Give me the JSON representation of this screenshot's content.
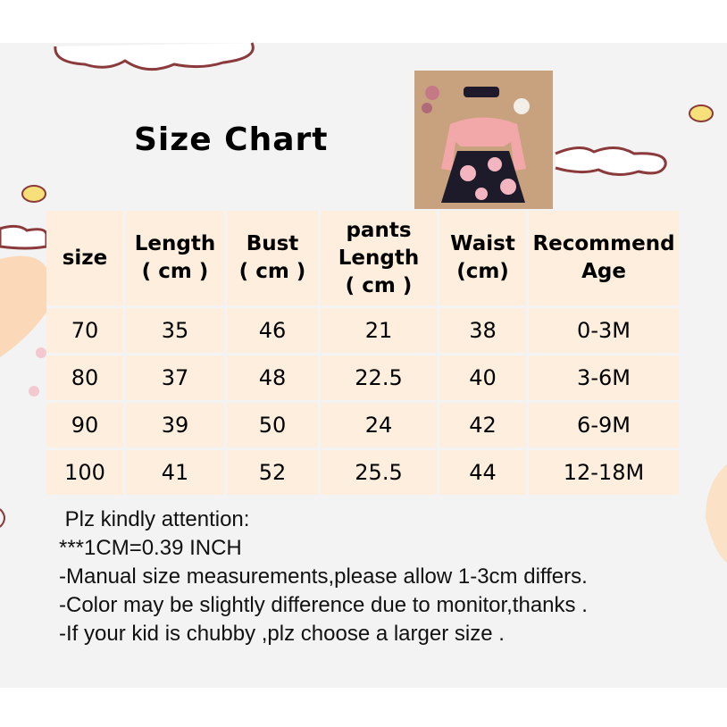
{
  "title": "Size Chart",
  "table": {
    "headers": [
      "size",
      "Length\n( cm )",
      "Bust\n( cm )",
      "pants\nLength\n( cm )",
      "Waist\n(cm)",
      "Recommend\nAge"
    ],
    "rows": [
      [
        "70",
        "35",
        "46",
        "21",
        "38",
        "0-3M"
      ],
      [
        "80",
        "37",
        "48",
        "22.5",
        "40",
        "3-6M"
      ],
      [
        "90",
        "39",
        "50",
        "24",
        "42",
        "6-9M"
      ],
      [
        "100",
        "41",
        "52",
        "25.5",
        "44",
        "12-18M"
      ]
    ]
  },
  "notes": [
    " Plz kindly attention:",
    "***1CM=0.39 INCH",
    "-Manual size measurements,please allow 1-3cm differs.",
    "-Color may be slightly difference due to monitor,thanks .",
    "-If your kid is chubby ,plz choose a larger size ."
  ],
  "colors": {
    "table_cell": "#fdeedd",
    "background": "#f3f3f3",
    "cloud_outline": "#8a3a3a"
  }
}
